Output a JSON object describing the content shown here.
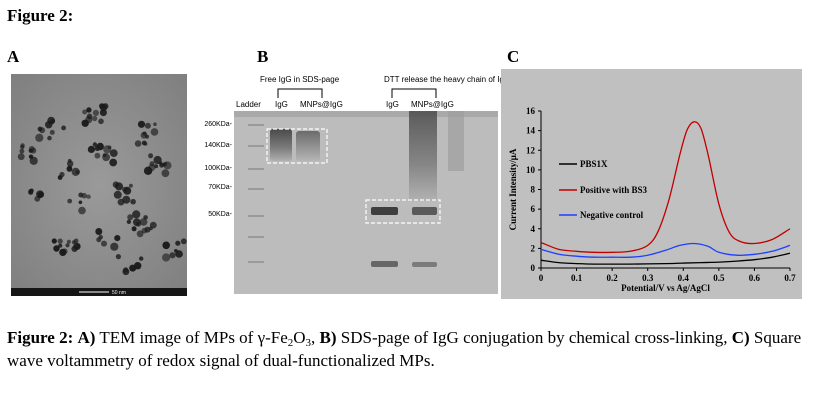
{
  "figure_heading": "Figure 2:",
  "panel_letters": {
    "a": "A",
    "b": "B",
    "c": "C"
  },
  "panel_a": {
    "scale_bar_label": "50 nm"
  },
  "panel_b": {
    "group_labels": [
      "Free IgG in SDS-page",
      "DTT  release the heavy chain of IgG"
    ],
    "lane_labels": [
      "Ladder",
      "IgG",
      "MNPs@IgG",
      "IgG",
      "MNPs@IgG"
    ],
    "mw_markers": [
      "260KDa-",
      "140KDa-",
      "100KDa-",
      "70KDa-",
      "50KDa-"
    ]
  },
  "chart_data": {
    "type": "line",
    "xlabel": "Potential/V vs Ag/AgCl",
    "ylabel": "Current Intensity/μA",
    "xlim": [
      0,
      0.7
    ],
    "ylim": [
      0,
      16
    ],
    "xticks": [
      "0",
      "0.1",
      "0.2",
      "0.3",
      "0.4",
      "0.5",
      "0.6",
      "0.7"
    ],
    "yticks": [
      "0",
      "2",
      "4",
      "6",
      "8",
      "10",
      "12",
      "14",
      "16"
    ],
    "grid": false,
    "legend_position": "left",
    "series": [
      {
        "name": "PBS1X",
        "color": "#000000",
        "x": [
          0,
          0.05,
          0.1,
          0.15,
          0.2,
          0.25,
          0.3,
          0.35,
          0.4,
          0.45,
          0.5,
          0.55,
          0.6,
          0.65,
          0.7
        ],
        "y": [
          0.8,
          0.55,
          0.45,
          0.4,
          0.4,
          0.4,
          0.42,
          0.45,
          0.5,
          0.55,
          0.6,
          0.7,
          0.85,
          1.1,
          1.5
        ]
      },
      {
        "name": "Positive with BS3",
        "color": "#c00000",
        "x": [
          0,
          0.05,
          0.1,
          0.15,
          0.2,
          0.25,
          0.3,
          0.33,
          0.36,
          0.39,
          0.41,
          0.43,
          0.45,
          0.47,
          0.5,
          0.53,
          0.56,
          0.6,
          0.65,
          0.7
        ],
        "y": [
          2.6,
          1.9,
          1.7,
          1.6,
          1.6,
          1.7,
          2.3,
          3.8,
          7.0,
          11.5,
          14.0,
          14.9,
          14.2,
          11.5,
          6.5,
          3.6,
          2.7,
          2.5,
          2.9,
          4.0
        ]
      },
      {
        "name": "Negative control",
        "color": "#1f3fff",
        "x": [
          0,
          0.05,
          0.1,
          0.15,
          0.2,
          0.25,
          0.3,
          0.35,
          0.39,
          0.43,
          0.47,
          0.5,
          0.55,
          0.6,
          0.65,
          0.7
        ],
        "y": [
          1.9,
          1.4,
          1.2,
          1.1,
          1.1,
          1.1,
          1.3,
          1.8,
          2.3,
          2.5,
          2.2,
          1.6,
          1.3,
          1.4,
          1.7,
          2.3
        ]
      }
    ]
  },
  "caption": {
    "label": "Figure 2:",
    "a_label": "A)",
    "a_text_before": " TEM image of MPs of γ-Fe",
    "a_sub1": "2",
    "a_mid": "O",
    "a_sub2": "3",
    "a_after": ", ",
    "b_label": "B)",
    "b_text": " SDS-page of IgG conjugation by chemical cross-linking, ",
    "c_label": "C)",
    "c_text": " Square wave voltammetry of redox signal of dual-functionalized MPs."
  }
}
